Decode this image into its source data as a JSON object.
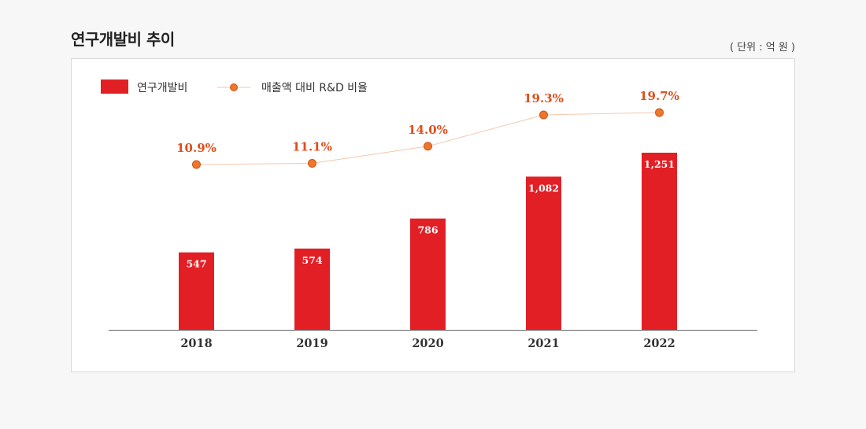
{
  "title": "연구개발비 추이",
  "unit_label": "( 단위 : 억 원 )",
  "colors": {
    "bar": "#e31f26",
    "line": "#f3c7ae",
    "marker_fill": "#f0762a",
    "marker_stroke": "#c9541a",
    "pct_label": "#e04e1b",
    "axis": "#666666"
  },
  "chart_data": {
    "type": "bar",
    "categories": [
      "2018",
      "2019",
      "2020",
      "2021",
      "2022"
    ],
    "series": [
      {
        "name": "연구개발비",
        "type": "bar",
        "values": [
          547,
          574,
          786,
          1082,
          1251
        ],
        "labels": [
          "547",
          "574",
          "786",
          "1,082",
          "1,251"
        ]
      },
      {
        "name": "매출액 대비 R&D 비율",
        "type": "line",
        "values": [
          10.9,
          11.1,
          14.0,
          19.3,
          19.7
        ],
        "labels": [
          "10.9%",
          "11.1%",
          "14.0%",
          "19.3%",
          "19.7%"
        ]
      }
    ],
    "legend": "top-left",
    "grid": false
  }
}
